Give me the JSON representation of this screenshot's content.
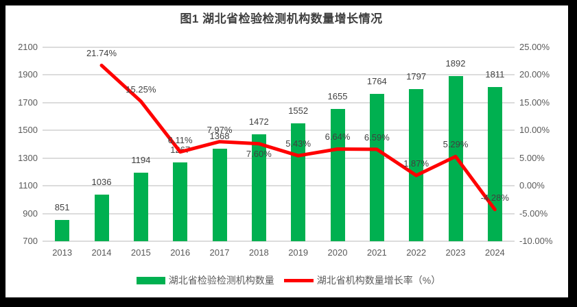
{
  "title": "图1 湖北省检验检测机构数量增长情况",
  "legend": {
    "items": [
      {
        "label": "湖北省检验检测机构数量",
        "marker": "bar-swatch",
        "color": "#00B050"
      },
      {
        "label": "湖北省机构数量增长率（%）",
        "marker": "line-swatch",
        "color": "#FF0000"
      }
    ]
  },
  "chart_data": {
    "type": "combo",
    "title": "图1 湖北省检验检测机构数量增长情况",
    "categories": [
      "2013",
      "2014",
      "2015",
      "2016",
      "2017",
      "2018",
      "2019",
      "2020",
      "2021",
      "2022",
      "2023",
      "2024"
    ],
    "series": [
      {
        "name": "湖北省检验检测机构数量",
        "type": "bar",
        "axis": "left",
        "color": "#00B050",
        "values": [
          851,
          1036,
          1194,
          1267,
          1368,
          1472,
          1552,
          1655,
          1764,
          1797,
          1892,
          1811
        ],
        "labels": [
          "851",
          "1036",
          "1194",
          "1267",
          "1368",
          "1472",
          "1552",
          "1655",
          "1764",
          "1797",
          "1892",
          "1811"
        ]
      },
      {
        "name": "湖北省机构数量增长率（%）",
        "type": "line",
        "axis": "right",
        "color": "#FF0000",
        "values": [
          null,
          21.74,
          15.25,
          6.11,
          7.97,
          7.6,
          5.43,
          6.64,
          6.59,
          1.87,
          5.29,
          -4.28
        ],
        "labels": [
          null,
          "21.74%",
          "15.25%",
          "6.11%",
          "7.97%",
          "7.60%",
          "5.43%",
          "6.64%",
          "6.59%",
          "1.87%",
          "5.29%",
          "-4.28%"
        ]
      }
    ],
    "left_axis": {
      "min": 700,
      "max": 2100,
      "step": 200,
      "ticks": [
        "700",
        "900",
        "1100",
        "1300",
        "1500",
        "1700",
        "1900",
        "2100"
      ]
    },
    "right_axis": {
      "min": -10,
      "max": 25,
      "step": 5,
      "ticks": [
        "-10.00%",
        "-5.00%",
        "0.00%",
        "5.00%",
        "10.00%",
        "15.00%",
        "20.00%",
        "25.00%"
      ]
    },
    "grid": true,
    "legend_position": "bottom",
    "label_below_indices": [
      5
    ]
  },
  "colors": {
    "bar": "#00B050",
    "line": "#FF0000",
    "grid": "#DCDCDC",
    "axis_text": "#595959",
    "data_label": "#404040",
    "title_text": "#3F3F3F",
    "frame": "#000000",
    "paper": "#FFFFFF"
  }
}
